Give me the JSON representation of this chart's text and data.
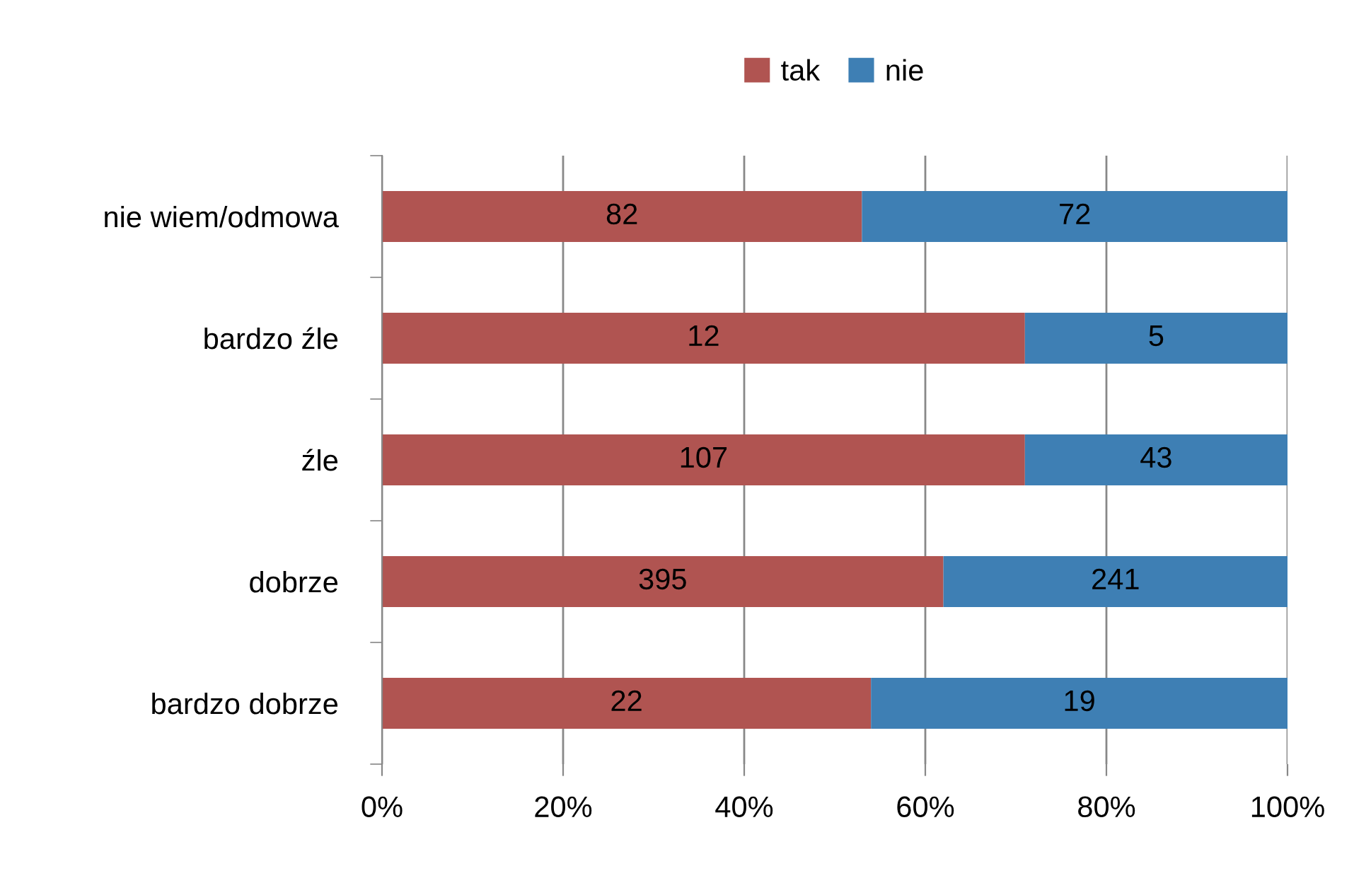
{
  "chart_data": {
    "type": "bar",
    "orientation": "horizontal",
    "stacked": true,
    "categories": [
      "nie wiem/odmowa",
      "bardzo źle",
      "źle",
      "dobrze",
      "bardzo dobrze"
    ],
    "series": [
      {
        "name": "tak",
        "color": "#b05451",
        "values": [
          53,
          71,
          71,
          62,
          54
        ]
      },
      {
        "name": "nie",
        "color": "#3e7fb4",
        "values": [
          47,
          29,
          29,
          38,
          46
        ]
      }
    ],
    "annotations": [
      "82",
      "72",
      "12",
      "5",
      "107",
      "43",
      "395",
      "241",
      "22",
      "19"
    ],
    "xlim": [
      0,
      100
    ],
    "xticks": [
      {
        "value": 0,
        "label": "0%"
      },
      {
        "value": 20,
        "label": "20%"
      },
      {
        "value": 40,
        "label": "40%"
      },
      {
        "value": 60,
        "label": "60%"
      },
      {
        "value": 80,
        "label": "80%"
      },
      {
        "value": 100,
        "label": "100%"
      }
    ],
    "grid": "x",
    "legend": "top"
  }
}
